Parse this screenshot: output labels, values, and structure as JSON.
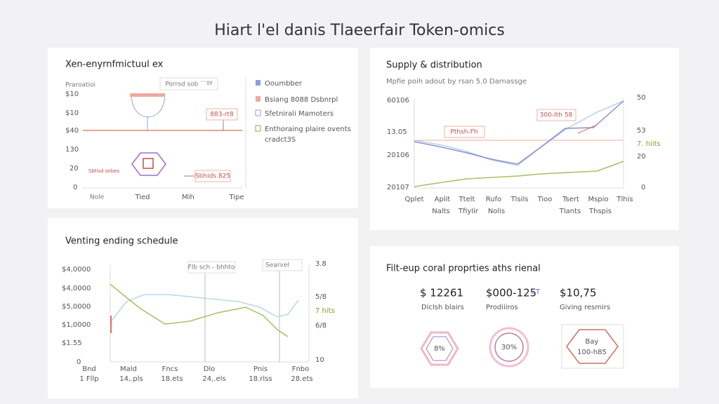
{
  "header": {
    "title": "Hiart l'el danis Tlaeerfair Token-omics"
  },
  "panels": [
    {
      "title": "Xen-enyrnfmictuul ex",
      "y_labels": [
        "Praroatioi",
        "$10",
        "$10",
        "$40",
        "130",
        "20",
        "0"
      ],
      "x_labels": [
        "Nole",
        "Tied",
        "Mih",
        "Tipe"
      ],
      "callouts": [
        "Porrsd sob ¨¨ºº",
        "883-rt8",
        "Sbhids 825",
        "Sbtlsd sebes"
      ],
      "legend": [
        "Ooumbber",
        "Bsiang 8088 Dsbnrpl",
        "Sfetnirali Mamoters",
        "Enthoraing plaire ovents"
      ],
      "legend_note": "cradct3S"
    },
    {
      "title": "Supply & distribution",
      "subtitle": "Mpfie poih adout by rsan 5.0 Darnassge",
      "y_labels": [
        "60106",
        "13.05",
        "20106",
        "20107"
      ],
      "y2_labels": [
        "50",
        "53",
        "7. hiits",
        "20",
        "0"
      ],
      "x_labels": [
        "Qplet",
        "Aplit",
        "Ttelt",
        "Rufo",
        "Tlsils",
        "Tioo",
        "Tsert",
        "Mspio",
        "Tlhis"
      ],
      "x_labels_2": [
        "Nalts",
        "Tfiylir",
        "Nolis",
        "Tlants",
        "Thspis"
      ],
      "callouts": [
        "300-Ith 58",
        "Pthsh-Fh"
      ]
    },
    {
      "title": "Venting ending schedule",
      "y_labels": [
        "$4,0000",
        "$4,0000",
        "$5,0000",
        "$1,0000",
        "$1.55",
        "0"
      ],
      "y2_labels": [
        "3.8",
        "5/8",
        "7 hits",
        "6/8",
        "10"
      ],
      "x_labels": [
        "Bnd",
        "Mald",
        "Fncs",
        "Dlo",
        "Pnis",
        "Fnbo"
      ],
      "x_labels_2": [
        "1 Fllp",
        "14,.pls",
        "18.ets",
        "24,.els",
        "18.rlss",
        "28.ets"
      ],
      "callouts": [
        "Flb sch - bhhto",
        "Searvel"
      ]
    },
    {
      "title": "Filt-eup coral proprties aths rienal",
      "stats": [
        {
          "value": "$ 12261",
          "label": "Diclsh blairs"
        },
        {
          "value": "$000-125",
          "unit": "CT",
          "label": "Prodiiiros"
        },
        {
          "value": "$10,75",
          "label": "Giving resmirs"
        }
      ],
      "badges": [
        "8%",
        "30%",
        "Bay",
        "100-h85"
      ]
    }
  ]
}
